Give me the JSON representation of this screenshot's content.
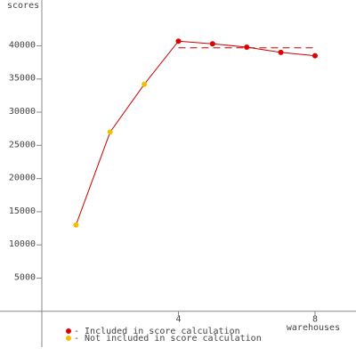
{
  "chart_data": {
    "type": "line",
    "y_label": "scores",
    "x_label": "warehouses",
    "x": [
      1,
      2,
      3,
      4,
      5,
      6,
      7,
      8
    ],
    "series": [
      {
        "color": "#cc0000",
        "values": [
          13000,
          27000,
          34200,
          40700,
          40300,
          39800,
          39000,
          38500
        ],
        "point_colors": [
          "#f0c000",
          "#f0c000",
          "#f0c000",
          "#dd0000",
          "#dd0000",
          "#dd0000",
          "#dd0000",
          "#dd0000"
        ]
      }
    ],
    "score_line": {
      "value": 39700,
      "x": [
        4,
        8
      ],
      "color": "#cc0000"
    },
    "legend": [
      {
        "name": "- Included in score calculation",
        "color": "#dd0000"
      },
      {
        "name": "- Not included in score calculation",
        "color": "#f0c000"
      }
    ],
    "xlim": [
      0,
      9.2
    ],
    "xticks": [
      4,
      8
    ],
    "ylim": [
      -5400,
      46900
    ],
    "yticks": [
      5000,
      10000,
      15000,
      20000,
      25000,
      30000,
      35000,
      40000
    ]
  }
}
